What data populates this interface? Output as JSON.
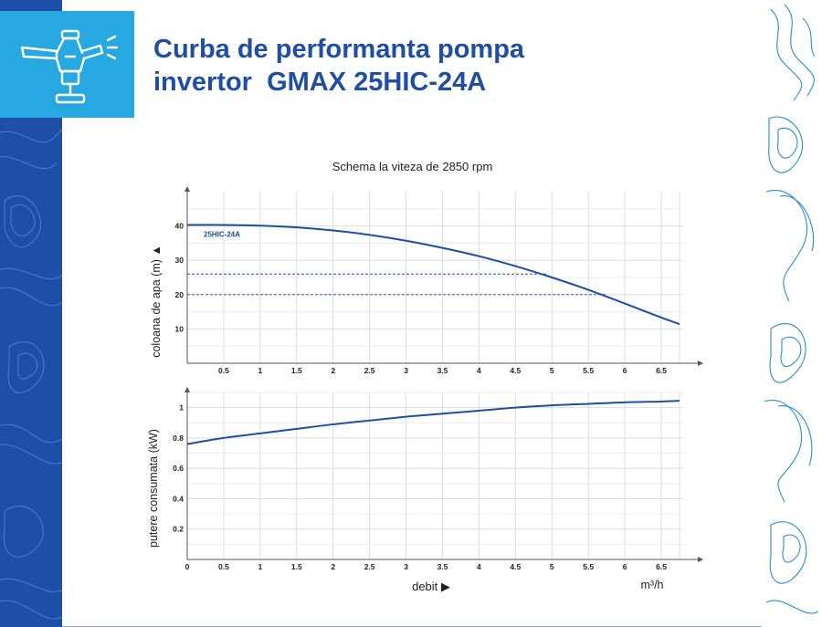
{
  "header": {
    "title_line1": "Curba de performanta pompa",
    "title_line2": "invertor  GMAX 25HIC-24A"
  },
  "icons": {
    "logo": "sprinkler-icon",
    "decor": "topographic-contour-pattern"
  },
  "colors": {
    "title": "#1f4ea3",
    "curve": "#1f4ea3",
    "logo_tile": "#27a8e1",
    "left_band": "#1e4fa8",
    "contour_lines": "#2a8ed0",
    "grid": "#d9dde2"
  },
  "chart_data": [
    {
      "type": "line",
      "title": "Schema la viteza de 2850 rpm",
      "xlabel": "",
      "ylabel": "coloana de apa (m) ▲",
      "x_ticks": [
        "0.5",
        "1",
        "1.5",
        "2",
        "2.5",
        "3",
        "3.5",
        "4",
        "4.5",
        "5",
        "5.5",
        "6",
        "6.5"
      ],
      "y_ticks": [
        "10",
        "20",
        "30",
        "40"
      ],
      "xlim": [
        0,
        6.8
      ],
      "ylim": [
        0,
        50
      ],
      "grid": true,
      "series": [
        {
          "name": "25HIC-24A",
          "x": [
            0,
            0.5,
            1,
            1.5,
            2,
            2.5,
            3,
            3.5,
            4,
            4.5,
            5,
            5.5,
            6,
            6.5,
            6.75
          ],
          "y": [
            40.3,
            40.3,
            40.1,
            39.6,
            38.7,
            37.4,
            35.7,
            33.6,
            31.2,
            28.3,
            25.0,
            21.4,
            17.4,
            13.3,
            11.4
          ]
        }
      ],
      "reference_lines": [
        {
          "y": 26,
          "x_end": 4.95,
          "style": "dashed"
        },
        {
          "y": 20,
          "x_end": 5.75,
          "style": "dashed"
        }
      ]
    },
    {
      "type": "line",
      "title": "",
      "xlabel": "debit ▶",
      "x_unit": "m³/h",
      "ylabel": "putere consumata (kW)",
      "x_ticks": [
        "0",
        "0.5",
        "1",
        "1.5",
        "2",
        "2.5",
        "3",
        "3.5",
        "4",
        "4.5",
        "5",
        "5.5",
        "6",
        "6.5"
      ],
      "y_ticks": [
        "0.2",
        "0.4",
        "0.6",
        "0.8",
        "1"
      ],
      "xlim": [
        0,
        6.8
      ],
      "ylim": [
        0,
        1.1
      ],
      "grid": true,
      "series": [
        {
          "x": [
            0,
            0.5,
            1,
            1.5,
            2,
            2.5,
            3,
            3.5,
            4,
            4.5,
            5,
            5.5,
            6,
            6.5,
            6.75
          ],
          "y": [
            0.76,
            0.8,
            0.83,
            0.86,
            0.89,
            0.915,
            0.94,
            0.96,
            0.98,
            1.0,
            1.015,
            1.025,
            1.035,
            1.04,
            1.045
          ]
        }
      ]
    }
  ]
}
